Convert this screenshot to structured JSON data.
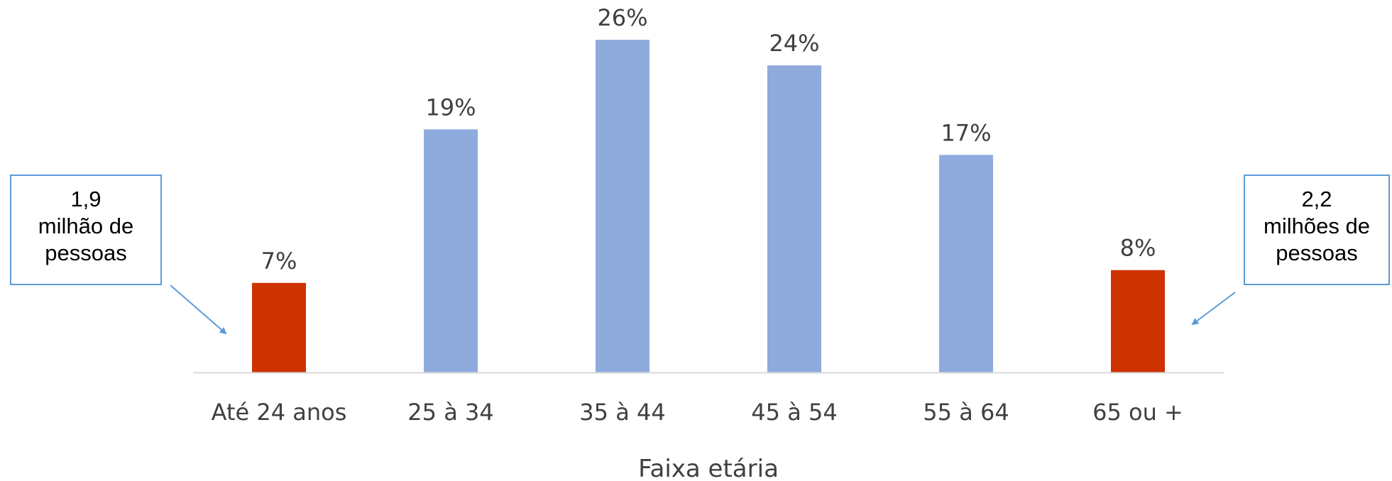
{
  "chart_data": {
    "type": "bar",
    "categories": [
      "Até 24 anos",
      "25 à 34",
      "35 à 44",
      "45 à 54",
      "55 à 64",
      "65 ou +"
    ],
    "values": [
      7,
      19,
      26,
      24,
      17,
      8
    ],
    "data_labels": [
      "7%",
      "19%",
      "26%",
      "24%",
      "17%",
      "8%"
    ],
    "xlabel": "Faixa etária",
    "ylabel": "",
    "ylim": [
      0,
      28
    ],
    "grid": false,
    "bar_colors": [
      "#cc3300",
      "#8faadc",
      "#8faadc",
      "#8faadc",
      "#8faadc",
      "#cc3300"
    ],
    "axis_color": "#d9d9d9"
  },
  "annotations": [
    {
      "lines": [
        "1,9",
        "milhão de",
        "pessoas"
      ],
      "target": "Até 24 anos"
    },
    {
      "lines": [
        "2,2",
        "milhões de",
        "pessoas"
      ],
      "target": "65 ou +"
    }
  ],
  "colors": {
    "callout_border": "#5b9bd5",
    "arrow": "#5b9bd5"
  }
}
